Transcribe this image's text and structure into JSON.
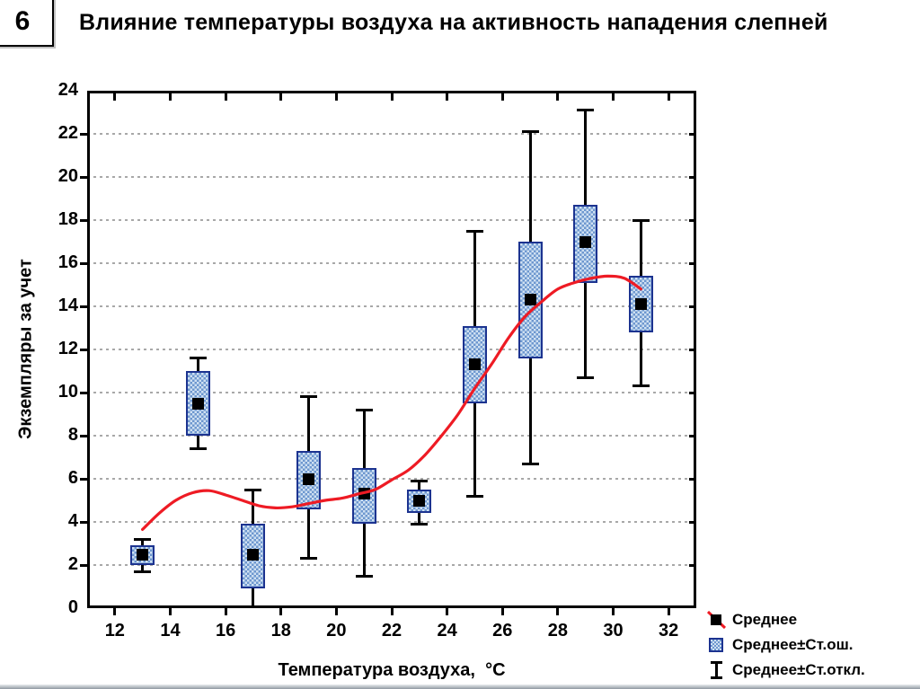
{
  "slide": {
    "number": "6",
    "title": "Влияние температуры воздуха на активность нападения слепней"
  },
  "chart_data": {
    "type": "box",
    "subtype": "mean-se-sd boxplot with fitted curve",
    "title": "Влияние температуры воздуха на активность нападения слепней",
    "xlabel": "Температура воздуха,  °C",
    "ylabel": "Экземпляры за учет",
    "xlim": [
      11,
      33
    ],
    "ylim": [
      0,
      24
    ],
    "x_ticks": [
      12,
      14,
      16,
      18,
      20,
      22,
      24,
      26,
      28,
      30,
      32
    ],
    "y_ticks": [
      0,
      2,
      4,
      6,
      8,
      10,
      12,
      14,
      16,
      18,
      20,
      22,
      24
    ],
    "grid": "horizontal dashed at even values",
    "legend_position": "bottom-right",
    "points": [
      {
        "t": 13,
        "mean": 2.5,
        "se": [
          2.0,
          2.9
        ],
        "sd": [
          1.7,
          3.2
        ]
      },
      {
        "t": 15,
        "mean": 9.5,
        "se": [
          8.0,
          11.0
        ],
        "sd": [
          7.4,
          11.6
        ]
      },
      {
        "t": 17,
        "mean": 2.5,
        "se": [
          0.9,
          3.9
        ],
        "sd": [
          -0.4,
          5.5
        ],
        "cap_low": false
      },
      {
        "t": 19,
        "mean": 6.0,
        "se": [
          4.6,
          7.3
        ],
        "sd": [
          2.3,
          9.8
        ]
      },
      {
        "t": 21,
        "mean": 5.3,
        "se": [
          3.9,
          6.5
        ],
        "sd": [
          1.5,
          9.2
        ]
      },
      {
        "t": 23,
        "mean": 5.0,
        "se": [
          4.4,
          5.5
        ],
        "sd": [
          3.9,
          5.9
        ]
      },
      {
        "t": 25,
        "mean": 11.3,
        "se": [
          9.5,
          13.1
        ],
        "sd": [
          5.2,
          17.5
        ]
      },
      {
        "t": 27,
        "mean": 14.3,
        "se": [
          11.6,
          17.0
        ],
        "sd": [
          6.7,
          22.1
        ]
      },
      {
        "t": 29,
        "mean": 17.0,
        "se": [
          15.1,
          18.7
        ],
        "sd": [
          10.7,
          23.1
        ]
      },
      {
        "t": 31,
        "mean": 14.1,
        "se": [
          12.8,
          15.4
        ],
        "sd": [
          10.3,
          18.0
        ]
      }
    ],
    "trend": [
      [
        13.0,
        3.65
      ],
      [
        13.6,
        4.4
      ],
      [
        14.2,
        5.0
      ],
      [
        14.8,
        5.35
      ],
      [
        15.4,
        5.45
      ],
      [
        16.0,
        5.25
      ],
      [
        16.6,
        5.0
      ],
      [
        17.2,
        4.75
      ],
      [
        17.8,
        4.65
      ],
      [
        18.4,
        4.7
      ],
      [
        19.0,
        4.85
      ],
      [
        19.6,
        5.0
      ],
      [
        20.2,
        5.1
      ],
      [
        20.8,
        5.3
      ],
      [
        21.4,
        5.5
      ],
      [
        22.0,
        5.95
      ],
      [
        22.6,
        6.4
      ],
      [
        23.2,
        7.1
      ],
      [
        23.8,
        8.0
      ],
      [
        24.4,
        9.0
      ],
      [
        25.0,
        10.2
      ],
      [
        25.6,
        11.3
      ],
      [
        26.2,
        12.5
      ],
      [
        26.8,
        13.5
      ],
      [
        27.4,
        14.2
      ],
      [
        28.0,
        14.8
      ],
      [
        28.6,
        15.1
      ],
      [
        29.2,
        15.3
      ],
      [
        29.8,
        15.4
      ],
      [
        30.4,
        15.3
      ],
      [
        31.0,
        14.8
      ]
    ],
    "colors": {
      "box_border": "#1c3390",
      "box_fill_light": "#cfe0f2",
      "box_fill_dark": "#6d97cf",
      "mean_marker": "#000000",
      "whisker": "#000000",
      "trend_line": "#ee1b24",
      "gridline": "#a8a8a8"
    }
  },
  "legend": {
    "items": [
      {
        "icon": "mean-square",
        "label": "Среднее"
      },
      {
        "icon": "se-box",
        "label": "Среднее±Ст.ош."
      },
      {
        "icon": "sd-whisker",
        "label": "Среднее±Ст.откл."
      }
    ]
  }
}
